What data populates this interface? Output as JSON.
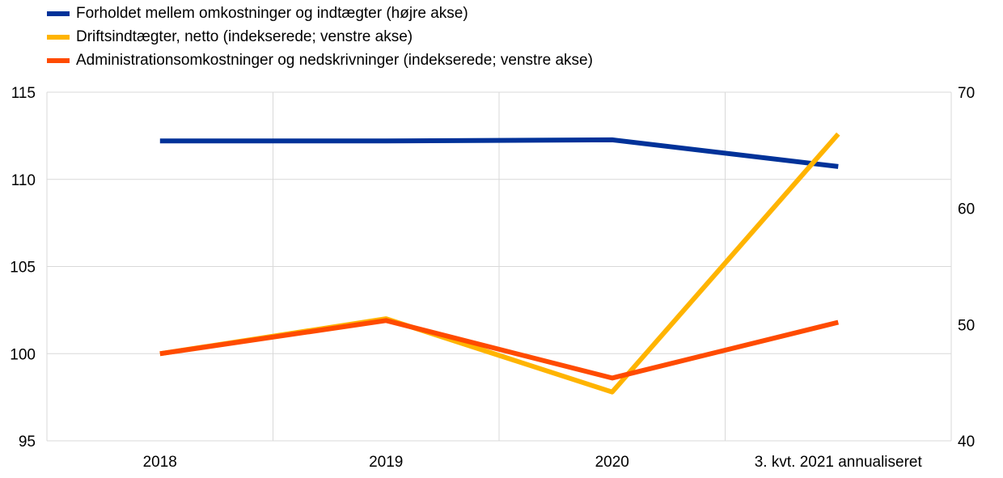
{
  "chart_data": {
    "type": "line",
    "categories": [
      "2018",
      "2019",
      "2020",
      "3. kvt. 2021 annualiseret"
    ],
    "series": [
      {
        "name": "Forholdet mellem omkostninger og indtægter (højre akse)",
        "axis": "right",
        "color": "#003299",
        "values": [
          65.8,
          65.8,
          65.9,
          63.6
        ]
      },
      {
        "name": "Driftsindtægter, netto (indekserede; venstre akse)",
        "axis": "left",
        "color": "#FFB400",
        "values": [
          100.0,
          102.0,
          97.8,
          112.6
        ]
      },
      {
        "name": "Administrationsomkostninger og nedskrivninger (indekserede; venstre akse)",
        "axis": "left",
        "color": "#FF4B00",
        "values": [
          100.0,
          101.9,
          98.6,
          101.8
        ]
      }
    ],
    "left_axis": {
      "ylim": [
        95,
        115
      ],
      "ticks": [
        "95",
        "100",
        "105",
        "110",
        "115"
      ]
    },
    "right_axis": {
      "ylim": [
        40,
        70
      ],
      "ticks": [
        "40",
        "50",
        "60",
        "70"
      ]
    },
    "grid": true,
    "legend_position": "top-left"
  }
}
